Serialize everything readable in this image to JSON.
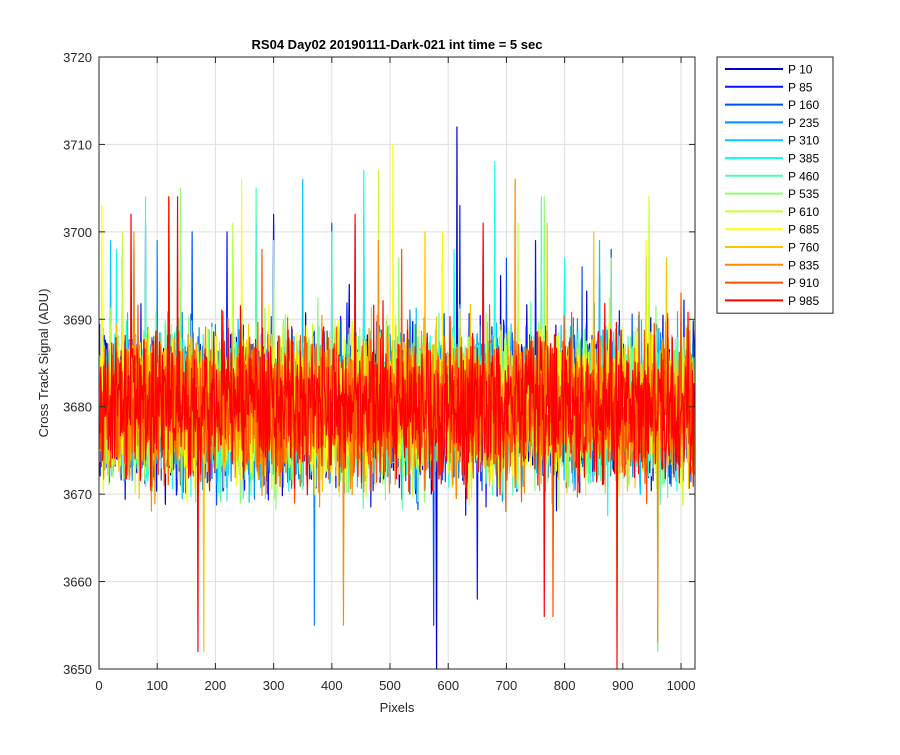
{
  "chart_data": {
    "type": "line",
    "title": "RS04 Day02 20190111-Dark-021 int time = 5 sec",
    "xlabel": "Pixels",
    "ylabel": "Cross Track Signal (ADU)",
    "xlim": [
      0,
      1024
    ],
    "ylim": [
      3650,
      3720
    ],
    "xticks": [
      0,
      100,
      200,
      300,
      400,
      500,
      600,
      700,
      800,
      900,
      1000
    ],
    "yticks": [
      3650,
      3660,
      3670,
      3680,
      3690,
      3700,
      3710,
      3720
    ],
    "grid": true,
    "legend_position": "outside-right",
    "x_start": 1,
    "x_end": 1024,
    "noise_center": 3680,
    "noise_halfwidth": 12,
    "series": [
      {
        "name": "P 10",
        "color": "#0000c8",
        "spikes": [
          [
            40,
            3697
          ],
          [
            300,
            3701
          ],
          [
            430,
            3694
          ],
          [
            580,
            3650
          ],
          [
            615,
            3712
          ],
          [
            690,
            3695
          ],
          [
            760,
            3696
          ],
          [
            860,
            3695
          ],
          [
            940,
            3697
          ]
        ]
      },
      {
        "name": "P 85",
        "color": "#0014ff",
        "spikes": [
          [
            80,
            3701
          ],
          [
            220,
            3700
          ],
          [
            300,
            3702
          ],
          [
            455,
            3702
          ],
          [
            620,
            3703
          ],
          [
            650,
            3658
          ],
          [
            750,
            3699
          ]
        ]
      },
      {
        "name": "P 160",
        "color": "#0050ff",
        "spikes": [
          [
            60,
            3698
          ],
          [
            160,
            3700
          ],
          [
            400,
            3701
          ],
          [
            575,
            3655
          ],
          [
            700,
            3697
          ],
          [
            830,
            3696
          ],
          [
            880,
            3698
          ]
        ]
      },
      {
        "name": "P 235",
        "color": "#008cff",
        "spikes": [
          [
            100,
            3699
          ],
          [
            270,
            3701
          ],
          [
            370,
            3655
          ],
          [
            440,
            3701
          ],
          [
            660,
            3699
          ],
          [
            800,
            3695
          ]
        ]
      },
      {
        "name": "P 310",
        "color": "#00c8ff",
        "spikes": [
          [
            20,
            3699
          ],
          [
            120,
            3699
          ],
          [
            350,
            3706
          ],
          [
            590,
            3697
          ],
          [
            860,
            3699
          ]
        ]
      },
      {
        "name": "P 385",
        "color": "#14ffeb",
        "spikes": [
          [
            30,
            3698
          ],
          [
            230,
            3700
          ],
          [
            455,
            3707
          ],
          [
            610,
            3698
          ],
          [
            680,
            3708
          ],
          [
            800,
            3697
          ]
        ]
      },
      {
        "name": "P 460",
        "color": "#50ffaf",
        "spikes": [
          [
            80,
            3704
          ],
          [
            270,
            3705
          ],
          [
            400,
            3700
          ],
          [
            760,
            3704
          ],
          [
            960,
            3652
          ]
        ]
      },
      {
        "name": "P 535",
        "color": "#8cff73",
        "spikes": [
          [
            140,
            3705
          ],
          [
            300,
            3699
          ],
          [
            515,
            3697
          ],
          [
            765,
            3704
          ],
          [
            880,
            3697
          ]
        ]
      },
      {
        "name": "P 610",
        "color": "#c8ff37",
        "spikes": [
          [
            40,
            3700
          ],
          [
            230,
            3701
          ],
          [
            480,
            3707
          ],
          [
            720,
            3701
          ],
          [
            945,
            3704
          ]
        ]
      },
      {
        "name": "P 685",
        "color": "#ffff00",
        "spikes": [
          [
            5,
            3703
          ],
          [
            245,
            3706
          ],
          [
            505,
            3710
          ],
          [
            590,
            3700
          ],
          [
            940,
            3699
          ]
        ]
      },
      {
        "name": "P 760",
        "color": "#ffc400",
        "spikes": [
          [
            180,
            3652
          ],
          [
            560,
            3700
          ],
          [
            770,
            3701
          ],
          [
            850,
            3700
          ],
          [
            975,
            3697
          ]
        ]
      },
      {
        "name": "P 835",
        "color": "#ff8c00",
        "spikes": [
          [
            60,
            3700
          ],
          [
            420,
            3655
          ],
          [
            480,
            3699
          ],
          [
            715,
            3706
          ],
          [
            960,
            3653
          ]
        ]
      },
      {
        "name": "P 910",
        "color": "#ff5000",
        "spikes": [
          [
            120,
            3704
          ],
          [
            280,
            3698
          ],
          [
            520,
            3698
          ],
          [
            780,
            3656
          ],
          [
            1000,
            3693
          ]
        ]
      },
      {
        "name": "P 985",
        "color": "#ff0000",
        "spikes": [
          [
            55,
            3702
          ],
          [
            120,
            3704
          ],
          [
            135,
            3704
          ],
          [
            170,
            3652
          ],
          [
            440,
            3702
          ],
          [
            660,
            3701
          ],
          [
            765,
            3656
          ],
          [
            890,
            3650
          ]
        ]
      }
    ]
  }
}
